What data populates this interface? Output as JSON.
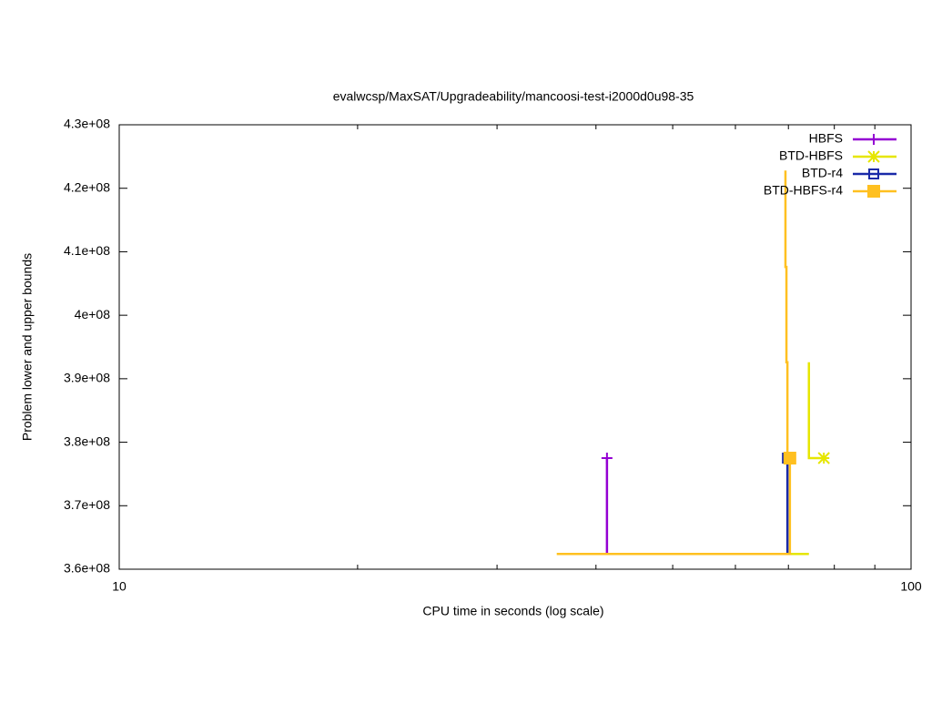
{
  "chart_data": {
    "type": "line",
    "title": "evalwcsp/MaxSAT/Upgradeability/mancoosi-test-i2000d0u98-35",
    "x_label": "CPU time in seconds (log scale)",
    "y_label": "Problem lower and upper bounds",
    "x_log_scale": true,
    "xlim": [
      10,
      100
    ],
    "xticks": [
      10,
      100
    ],
    "xminor_ticks": [
      20,
      30,
      40,
      50,
      60,
      70,
      80,
      90
    ],
    "ylim": [
      360000000,
      430000000
    ],
    "yticks": [
      {
        "value": 360000000,
        "label": "3.6e+08"
      },
      {
        "value": 370000000,
        "label": "3.7e+08"
      },
      {
        "value": 380000000,
        "label": "3.8e+08"
      },
      {
        "value": 390000000,
        "label": "3.9e+08"
      },
      {
        "value": 400000000,
        "label": "4e+08"
      },
      {
        "value": 410000000,
        "label": "4.1e+08"
      },
      {
        "value": 420000000,
        "label": "4.2e+08"
      },
      {
        "value": 430000000,
        "label": "4.3e+08"
      }
    ],
    "legend": "top-right",
    "series": [
      {
        "name": "HBFS",
        "color": "#9400d3",
        "point_type": "plus",
        "x": [
          41.3,
          41.3
        ],
        "values": [
          362400000,
          377500000
        ]
      },
      {
        "name": "BTD-HBFS",
        "color": "#e6e600",
        "point_type": "star",
        "x": [
          35.7,
          74.3,
          null,
          74.3,
          74.3,
          77.6
        ],
        "values": [
          362400000,
          362400000,
          null,
          392600000,
          377500000,
          377500000
        ]
      },
      {
        "name": "BTD-r4",
        "color": "#1a2aa8",
        "point_type": "square-open",
        "x": [
          69.8,
          69.8
        ],
        "values": [
          362400000,
          377500000
        ]
      },
      {
        "name": "BTD-HBFS-r4",
        "color": "#ffc020",
        "point_type": "square-filled",
        "x": [
          35.7,
          70.3,
          70.3,
          null,
          69.4,
          69.4,
          69.6,
          69.6,
          69.8,
          69.8,
          70.0,
          70.0,
          70.3
        ],
        "values": [
          362400000,
          362400000,
          377500000,
          null,
          422800000,
          407600000,
          407600000,
          392600000,
          392600000,
          377500000,
          377500000,
          377500000,
          377500000
        ]
      }
    ]
  }
}
